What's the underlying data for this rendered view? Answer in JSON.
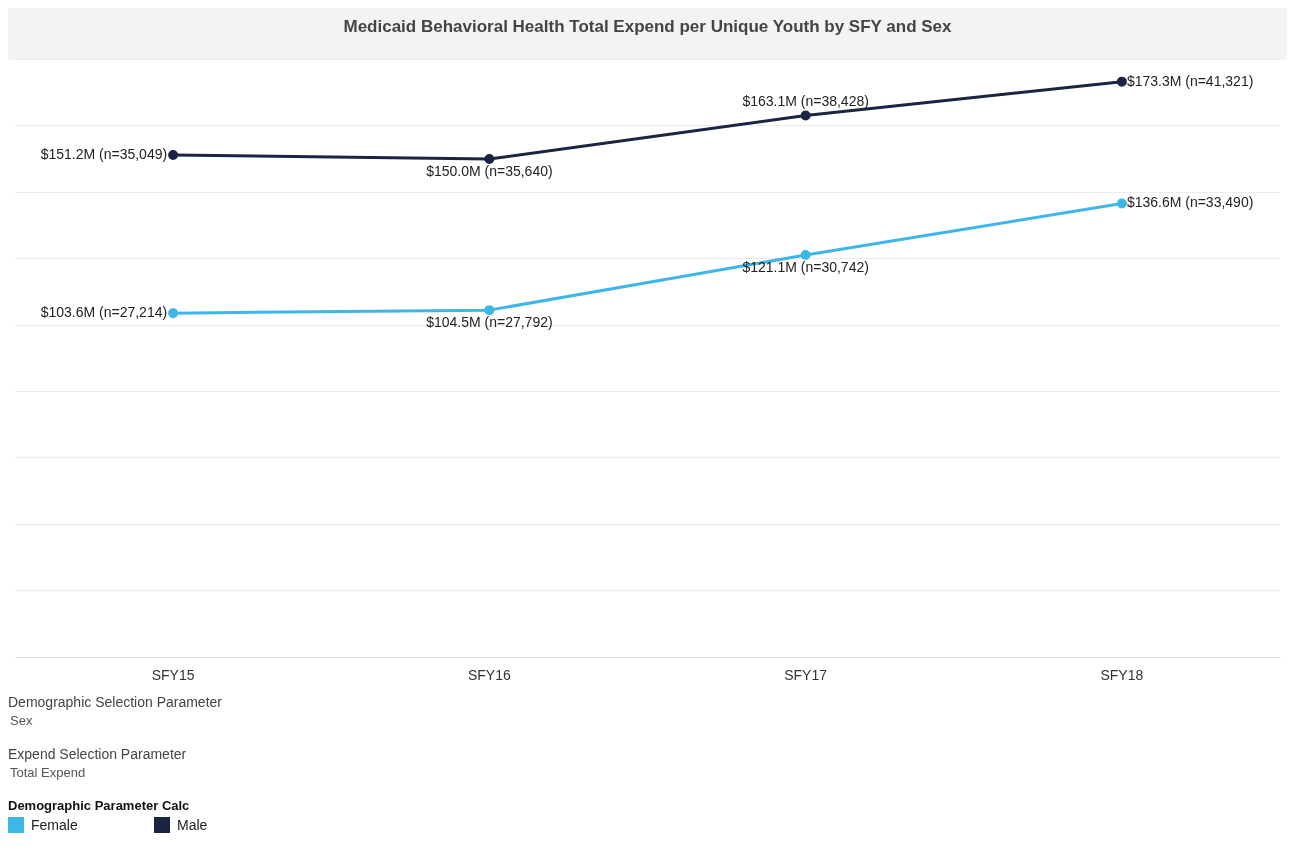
{
  "chart_data": {
    "type": "line",
    "title": "Medicaid Behavioral Health Total Expend per Unique Youth by SFY and Sex",
    "categories": [
      "SFY15",
      "SFY16",
      "SFY17",
      "SFY18"
    ],
    "series": [
      {
        "name": "Female",
        "color": "#3fb6e8",
        "values": [
          103600000,
          104500000,
          121100000,
          136600000
        ],
        "value_labels": [
          "$103.6M (n=27,214)",
          "$104.5M (n=27,792)",
          "$121.1M (n=30,742)",
          "$136.6M (n=33,490)"
        ]
      },
      {
        "name": "Male",
        "color": "#1b2440",
        "values": [
          151200000,
          150000000,
          163100000,
          173300000
        ],
        "value_labels": [
          "$151.2M (n=35,049)",
          "$150.0M (n=35,640)",
          "$163.1M (n=38,428)",
          "$173.3M (n=41,321)"
        ]
      }
    ],
    "tick_labels": "x",
    "grid": "y",
    "marker": "circle",
    "line_style": "solid",
    "legend": "bottom left",
    "legend_title": "Demographic Parameter Calc",
    "annotations": [
      "Demographic Selection Parameter",
      "Sex",
      "Expend Selection Parameter",
      "Total Expend"
    ]
  }
}
